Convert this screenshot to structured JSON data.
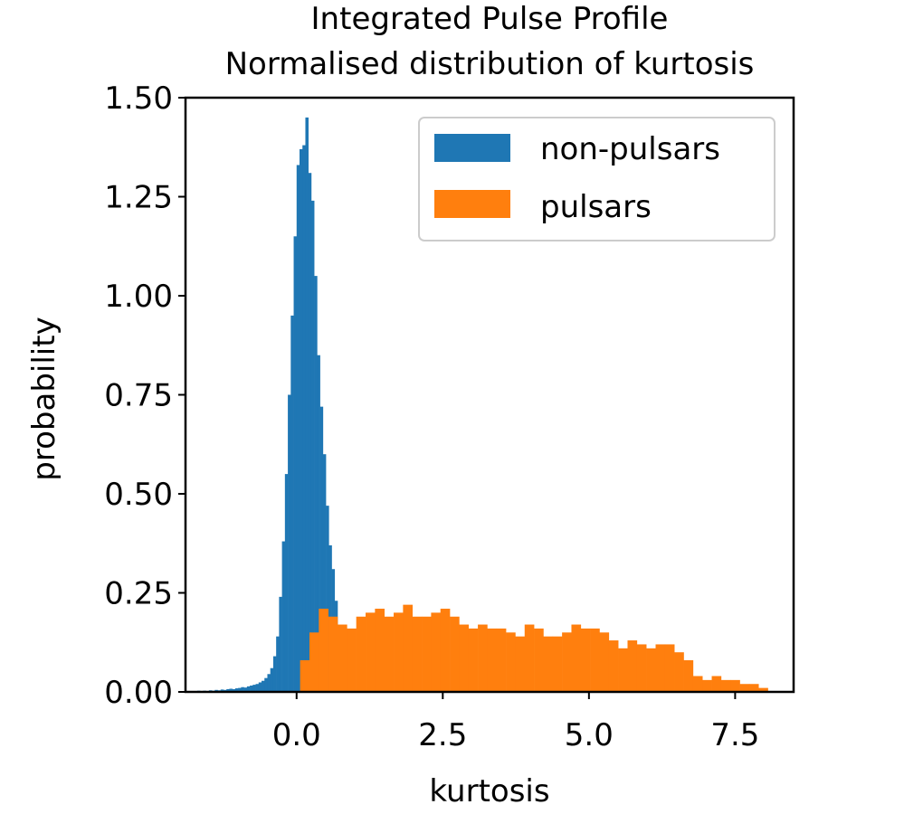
{
  "chart_data": {
    "type": "bar",
    "title": "Integrated Pulse Profile",
    "subtitle": "Normalised distribution of kurtosis",
    "xlabel": "kurtosis",
    "ylabel": "probability",
    "xlim": [
      -1.9,
      8.5
    ],
    "ylim": [
      0.0,
      1.5
    ],
    "x_ticks": [
      0.0,
      2.5,
      5.0,
      7.5
    ],
    "x_tick_labels": [
      "0.0",
      "2.5",
      "5.0",
      "7.5"
    ],
    "y_ticks": [
      0.0,
      0.25,
      0.5,
      0.75,
      1.0,
      1.25,
      1.5
    ],
    "y_tick_labels": [
      "0.00",
      "0.25",
      "0.50",
      "0.75",
      "1.00",
      "1.25",
      "1.50"
    ],
    "grid": false,
    "legend_position": "top-right",
    "series": [
      {
        "name": "non-pulsars",
        "color": "#1f77b4",
        "bin_width": 0.05,
        "bins_start": [
          -1.7,
          -1.65,
          -1.6,
          -1.55,
          -1.5,
          -1.45,
          -1.4,
          -1.35,
          -1.3,
          -1.25,
          -1.2,
          -1.15,
          -1.1,
          -1.05,
          -1.0,
          -0.95,
          -0.9,
          -0.85,
          -0.8,
          -0.75,
          -0.7,
          -0.65,
          -0.6,
          -0.55,
          -0.5,
          -0.45,
          -0.4,
          -0.35,
          -0.3,
          -0.25,
          -0.2,
          -0.15,
          -0.1,
          -0.05,
          0.0,
          0.05,
          0.1,
          0.15,
          0.2,
          0.25,
          0.3,
          0.35,
          0.4,
          0.45,
          0.5,
          0.55,
          0.6,
          0.65,
          0.7,
          0.75
        ],
        "values": [
          0.003,
          0.002,
          0.003,
          0.002,
          0.004,
          0.003,
          0.005,
          0.004,
          0.006,
          0.005,
          0.007,
          0.008,
          0.007,
          0.009,
          0.01,
          0.012,
          0.011,
          0.014,
          0.016,
          0.018,
          0.02,
          0.024,
          0.028,
          0.035,
          0.045,
          0.06,
          0.09,
          0.14,
          0.24,
          0.38,
          0.55,
          0.75,
          0.95,
          1.15,
          1.33,
          1.37,
          1.38,
          1.45,
          1.31,
          1.24,
          1.05,
          0.85,
          0.72,
          0.6,
          0.47,
          0.37,
          0.31,
          0.23,
          0.16,
          0.1
        ]
      },
      {
        "name": "pulsars",
        "color": "#ff7f0e",
        "bin_width": 0.16,
        "bins_start": [
          0.06,
          0.22,
          0.38,
          0.54,
          0.7,
          0.86,
          1.02,
          1.18,
          1.34,
          1.5,
          1.66,
          1.82,
          1.98,
          2.14,
          2.3,
          2.46,
          2.62,
          2.78,
          2.94,
          3.1,
          3.26,
          3.42,
          3.58,
          3.74,
          3.9,
          4.06,
          4.22,
          4.38,
          4.54,
          4.7,
          4.86,
          5.02,
          5.18,
          5.34,
          5.5,
          5.66,
          5.82,
          5.98,
          6.14,
          6.3,
          6.46,
          6.62,
          6.78,
          6.94,
          7.1,
          7.26,
          7.42,
          7.58,
          7.74,
          7.9
        ],
        "values": [
          0.08,
          0.15,
          0.21,
          0.19,
          0.17,
          0.16,
          0.19,
          0.2,
          0.21,
          0.19,
          0.2,
          0.22,
          0.19,
          0.19,
          0.2,
          0.21,
          0.19,
          0.17,
          0.16,
          0.17,
          0.16,
          0.16,
          0.15,
          0.14,
          0.17,
          0.16,
          0.14,
          0.14,
          0.15,
          0.17,
          0.16,
          0.16,
          0.15,
          0.13,
          0.11,
          0.13,
          0.12,
          0.11,
          0.12,
          0.12,
          0.1,
          0.08,
          0.04,
          0.03,
          0.04,
          0.03,
          0.03,
          0.02,
          0.02,
          0.01
        ]
      }
    ]
  }
}
